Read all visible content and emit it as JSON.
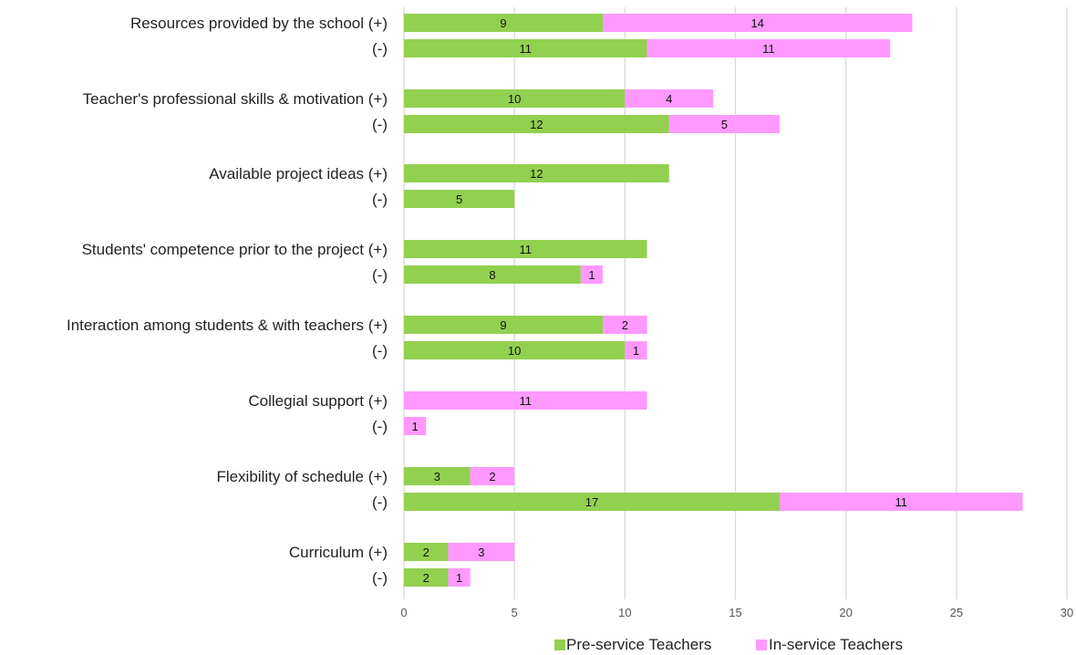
{
  "chart_data": {
    "type": "bar",
    "orientation": "horizontal",
    "stacked": true,
    "categories": [
      "Resources provided by the school (+)",
      "(-)",
      "Teacher's professional skills & motivation (+)",
      "(-)",
      "Available project ideas (+)",
      "(-)",
      "Students' competence prior to the project (+)",
      "(-)",
      "Interaction among students & with teachers (+)",
      "(-)",
      "Collegial support (+)",
      "(-)",
      "Flexibility of schedule (+)",
      "(-)",
      "Curriculum (+)",
      "(-)"
    ],
    "series": [
      {
        "name": "Pre-service Teachers",
        "color": "#92d050",
        "values": [
          9,
          11,
          10,
          12,
          12,
          5,
          11,
          8,
          9,
          10,
          0,
          0,
          3,
          17,
          2,
          2
        ]
      },
      {
        "name": "In-service Teachers",
        "color": "#ff99ff",
        "values": [
          14,
          11,
          4,
          5,
          0,
          0,
          0,
          1,
          2,
          1,
          11,
          1,
          2,
          11,
          3,
          1
        ]
      }
    ],
    "xlim": [
      0,
      30
    ],
    "xticks": [
      0,
      5,
      10,
      15,
      20,
      25,
      30
    ],
    "grid": true,
    "legend_position": "bottom",
    "title": "",
    "xlabel": "",
    "ylabel": ""
  }
}
